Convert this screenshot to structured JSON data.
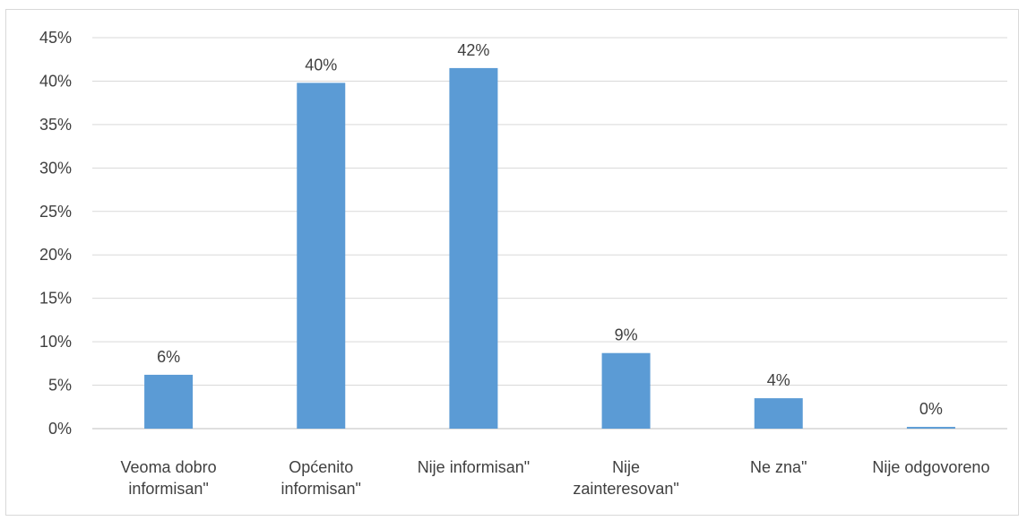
{
  "chart_data": {
    "type": "bar",
    "title": "",
    "xlabel": "",
    "ylabel": "",
    "categories": [
      [
        "Veoma dobro",
        "informisan\""
      ],
      [
        "Općenito",
        "informisan\""
      ],
      [
        "Nije informisan\""
      ],
      [
        "Nije",
        "zainteresovan\""
      ],
      [
        "Ne zna\""
      ],
      [
        "Nije odgovoreno"
      ]
    ],
    "values": [
      6.2,
      39.8,
      41.5,
      8.7,
      3.5,
      0.2
    ],
    "data_labels": [
      "6%",
      "40%",
      "42%",
      "9%",
      "4%",
      "0%"
    ],
    "ylim": [
      0,
      45
    ],
    "yticks": [
      0,
      5,
      10,
      15,
      20,
      25,
      30,
      35,
      40,
      45
    ],
    "ytick_labels": [
      "0%",
      "5%",
      "10%",
      "15%",
      "20%",
      "25%",
      "30%",
      "35%",
      "40%",
      "45%"
    ],
    "grid": true,
    "legend": "none",
    "bar_color": "#5b9bd5",
    "grid_color": "#d9d9d9",
    "axis_color": "#bfbfbf"
  }
}
